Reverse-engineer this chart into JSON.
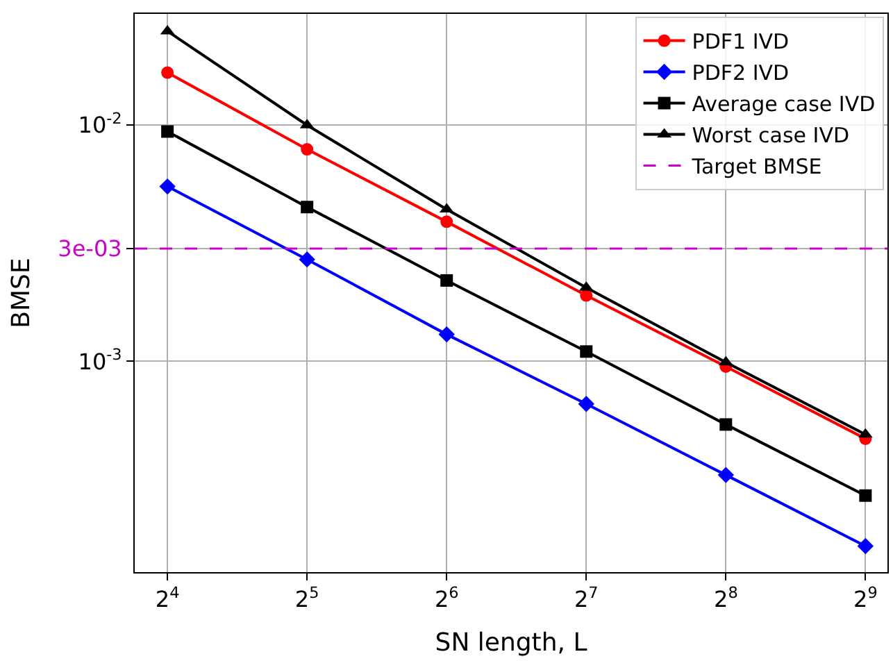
{
  "chart_data": {
    "type": "line",
    "xlabel": "SN length, L",
    "ylabel": "BMSE",
    "x": [
      16,
      32,
      64,
      128,
      256,
      512
    ],
    "series": [
      {
        "name": "PDF1 IVD",
        "color": "#ff0000",
        "marker": "circle",
        "values": [
          0.0167,
          0.0079,
          0.0039,
          0.0019,
          0.00095,
          0.00047
        ]
      },
      {
        "name": "PDF2 IVD",
        "color": "#0000ff",
        "marker": "diamond",
        "values": [
          0.0055,
          0.0027,
          0.0013,
          0.00066,
          0.00033,
          0.000165
        ]
      },
      {
        "name": "Average case IVD",
        "color": "#000000",
        "marker": "square",
        "values": [
          0.0094,
          0.0045,
          0.0022,
          0.0011,
          0.00054,
          0.00027
        ]
      },
      {
        "name": "Worst case IVD",
        "color": "#000000",
        "marker": "triangle",
        "values": [
          0.025,
          0.01,
          0.0044,
          0.00205,
          0.00099,
          0.00049
        ]
      }
    ],
    "ref_lines": [
      {
        "axis": "y",
        "value": 0.003,
        "label": "Target BMSE",
        "color": "#cc00cc",
        "line_style": "dashed"
      }
    ],
    "log": "xy",
    "xlim": [
      13.6,
      571
    ],
    "ylim": [
      0.000128,
      0.0296
    ],
    "xticks": [
      {
        "value": 16,
        "label": "2$^{4}$"
      },
      {
        "value": 32,
        "label": "2$^{5}$"
      },
      {
        "value": 64,
        "label": "2$^{6}$"
      },
      {
        "value": 128,
        "label": "2$^{7}$"
      },
      {
        "value": 256,
        "label": "2$^{8}$"
      },
      {
        "value": 512,
        "label": "2$^{9}$"
      }
    ],
    "yticks": [
      {
        "value": 0.01,
        "label": "10$^{-2}$"
      },
      {
        "value": 0.003,
        "label": "3e-03"
      },
      {
        "value": 0.001,
        "label": "10$^{-3}$"
      }
    ],
    "grid": true,
    "legend": "top right",
    "line_style": "solid"
  }
}
